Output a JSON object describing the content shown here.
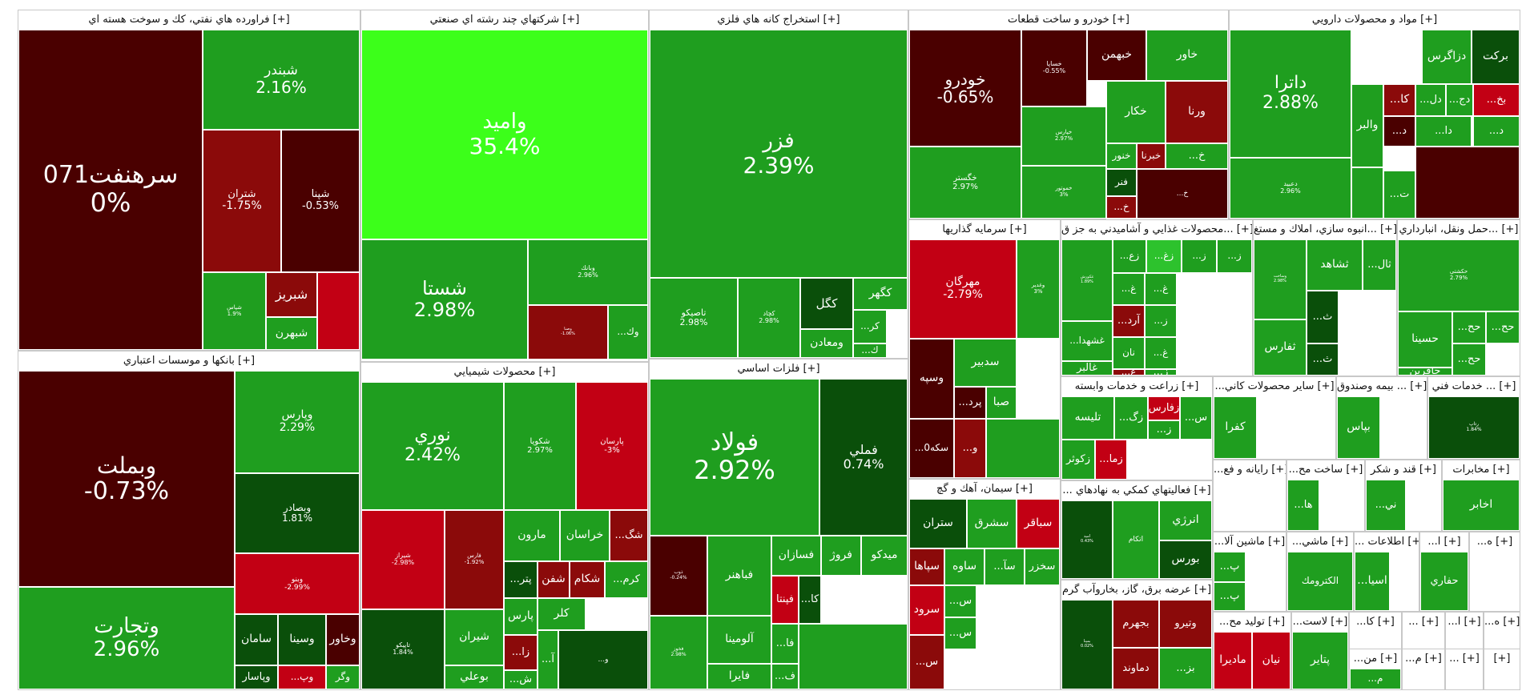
{
  "colors": {
    "dark_red": "#4a0000",
    "red": "#c20014",
    "mid_red": "#8b0a0a",
    "dark_green": "#0a4f0a",
    "green": "#1f9e1f",
    "light_green": "#2dc22d",
    "bright_green": "#3cff1a"
  },
  "sectors": [
    {
      "title": "فراورده هاي نفتي، كك و سوخت هسته اي [+]",
      "tiles": [
        {
          "symbol": "سرهنفت071",
          "change": "0%"
        },
        {
          "symbol": "شبندر",
          "change": "2.16%"
        },
        {
          "symbol": "شتران",
          "change": "-1.75%"
        },
        {
          "symbol": "شپنا",
          "change": "-0.53%"
        },
        {
          "symbol": "شپاس",
          "change": "1.9%"
        },
        {
          "symbol": "شبريز"
        },
        {
          "symbol": "شبهرن"
        }
      ]
    },
    {
      "title": "شركتهاي چند رشته اي صنعتي [+]",
      "tiles": [
        {
          "symbol": "واميد",
          "change": "35.4%"
        },
        {
          "symbol": "شستا",
          "change": "2.98%"
        },
        {
          "symbol": "وبانك",
          "change": "2.96%"
        },
        {
          "symbol": "وصنا",
          "change": "-1.06%"
        },
        {
          "symbol": "...وك"
        }
      ]
    },
    {
      "title": "استخراج كانه هاي فلزي [+]",
      "tiles": [
        {
          "symbol": "فزر",
          "change": "2.39%"
        },
        {
          "symbol": "تاصيكو",
          "change": "2.98%"
        },
        {
          "symbol": "كچاد",
          "change": "2.98%"
        },
        {
          "symbol": "كگل"
        },
        {
          "symbol": "كگهر"
        },
        {
          "symbol": "ومعادن"
        },
        {
          "symbol": "...كر"
        },
        {
          "symbol": "...ك"
        }
      ]
    },
    {
      "title": "خودرو و ساخت قطعات [+]",
      "tiles": [
        {
          "symbol": "خودرو",
          "change": "-0.65%"
        },
        {
          "symbol": "خساپا",
          "change": "-0.55%"
        },
        {
          "symbol": "خبهمن"
        },
        {
          "symbol": "خاور"
        },
        {
          "symbol": "خپارس",
          "change": "2.97%"
        },
        {
          "symbol": "خكار"
        },
        {
          "symbol": "ورنا"
        },
        {
          "symbol": "خگستر",
          "change": "2.97%"
        },
        {
          "symbol": "خموتور",
          "change": "3%"
        },
        {
          "symbol": "خنور"
        },
        {
          "symbol": "خبرنا"
        },
        {
          "symbol": "فنر"
        },
        {
          "symbol": "...خ"
        },
        {
          "symbol": "...خ"
        },
        {
          "symbol": "...خ"
        },
        {
          "symbol": "...خ"
        }
      ]
    },
    {
      "title": "مواد و محصولات دارويي [+]",
      "tiles": [
        {
          "symbol": "داترا",
          "change": "2.88%"
        },
        {
          "symbol": "دزاگرس"
        },
        {
          "symbol": "بركت"
        },
        {
          "symbol": "دعبيد",
          "change": "2.96%"
        },
        {
          "symbol": "والبر"
        },
        {
          "symbol": "...كا"
        },
        {
          "symbol": "...دل"
        },
        {
          "symbol": "...دج"
        },
        {
          "symbol": "...بخ"
        },
        {
          "symbol": "...د"
        },
        {
          "symbol": "...دا"
        },
        {
          "symbol": "...د"
        },
        {
          "symbol": "...ت"
        }
      ]
    },
    {
      "title": "بانكها و موسسات اعتباري [+]",
      "tiles": [
        {
          "symbol": "وبملت",
          "change": "-0.73%"
        },
        {
          "symbol": "وپارس",
          "change": "2.29%"
        },
        {
          "symbol": "وبصادر",
          "change": "1.81%"
        },
        {
          "symbol": "وتجارت",
          "change": "2.96%"
        },
        {
          "symbol": "وبنو",
          "change": "-2.99%"
        },
        {
          "symbol": "سامان"
        },
        {
          "symbol": "وسينا"
        },
        {
          "symbol": "وخاور"
        },
        {
          "symbol": "وپاسار"
        },
        {
          "symbol": "...وپ"
        },
        {
          "symbol": "وگر"
        }
      ]
    },
    {
      "title": "محصولات شيميايي [+]",
      "tiles": [
        {
          "symbol": "نوري",
          "change": "2.42%"
        },
        {
          "symbol": "شكويا",
          "change": "2.97%"
        },
        {
          "symbol": "پارسان",
          "change": "-3%"
        },
        {
          "symbol": "شيراز",
          "change": "-2.98%"
        },
        {
          "symbol": "فارس",
          "change": "-1.92%"
        },
        {
          "symbol": "تاپيكو",
          "change": "1.84%"
        },
        {
          "symbol": "مارون"
        },
        {
          "symbol": "خراسان"
        },
        {
          "symbol": "...شگ"
        },
        {
          "symbol": "شفن"
        },
        {
          "symbol": "شكام"
        },
        {
          "symbol": "...كرم"
        },
        {
          "symbol": "كلر"
        },
        {
          "symbol": "شيران"
        },
        {
          "symbol": "بوعلي"
        },
        {
          "symbol": "...پتر"
        },
        {
          "symbol": "پارس"
        },
        {
          "symbol": "...زا"
        },
        {
          "symbol": "...ش"
        },
        {
          "symbol": "...آ"
        },
        {
          "symbol": "...و"
        }
      ]
    },
    {
      "title": "فلزات اساسي [+]",
      "tiles": [
        {
          "symbol": "فولاد",
          "change": "2.92%"
        },
        {
          "symbol": "فملي",
          "change": "0.74%"
        },
        {
          "symbol": "ذوب",
          "change": "-0.24%"
        },
        {
          "symbol": "فخوز",
          "change": "2.98%"
        },
        {
          "symbol": "فباهنر"
        },
        {
          "symbol": "فسازان"
        },
        {
          "symbol": "فروژ"
        },
        {
          "symbol": "ميدكو"
        },
        {
          "symbol": "آلومينا"
        },
        {
          "symbol": "فايرا"
        },
        {
          "symbol": "فپنتا"
        },
        {
          "symbol": "...كا"
        },
        {
          "symbol": "...فا"
        },
        {
          "symbol": "...ف"
        }
      ]
    },
    {
      "title": "سرمايه گذاريها [+]",
      "tiles": [
        {
          "symbol": "مهرگان",
          "change": "-2.79%"
        },
        {
          "symbol": "وغدير",
          "change": "3%"
        },
        {
          "symbol": "وسپه"
        },
        {
          "symbol": "سدبير"
        },
        {
          "symbol": "...سكه0"
        },
        {
          "symbol": "...پرد"
        },
        {
          "symbol": "صبا"
        },
        {
          "symbol": "...و"
        }
      ]
    },
    {
      "title": "محصولات غذايي و آشاميدني به جز ق... [+]",
      "tiles": [
        {
          "symbol": "غكورش",
          "change": "1.89%"
        },
        {
          "symbol": "...زع"
        },
        {
          "symbol": "...زغ"
        },
        {
          "symbol": "...ز"
        },
        {
          "symbol": "...ز"
        },
        {
          "symbol": "...غ"
        },
        {
          "symbol": "...آرد"
        },
        {
          "symbol": "...غ"
        },
        {
          "symbol": "...ز"
        },
        {
          "symbol": "نان"
        },
        {
          "symbol": "...غشهدا"
        },
        {
          "symbol": "...غ"
        },
        {
          "symbol": "...غ"
        },
        {
          "symbol": "غالبر"
        },
        {
          "symbol": "غزر"
        },
        {
          "symbol": "...ز"
        }
      ]
    },
    {
      "title": "انبوه سازي، املاك و مستغ... [+]",
      "tiles": [
        {
          "symbol": "وساخت",
          "change": "2.98%"
        },
        {
          "symbol": "ثشاهد"
        },
        {
          "symbol": "...ثال"
        },
        {
          "symbol": "ثفارس"
        },
        {
          "symbol": "...ث"
        },
        {
          "symbol": "...ث"
        }
      ]
    },
    {
      "title": "حمل ونقل، انبارداري... [+]",
      "tiles": [
        {
          "symbol": "حكشتي",
          "change": "2.79%"
        },
        {
          "symbol": "حسينا"
        },
        {
          "symbol": "...حح"
        },
        {
          "symbol": "...حح"
        },
        {
          "symbol": "...حح"
        },
        {
          "symbol": "حآفرين"
        }
      ]
    },
    {
      "title": "سيمان، آهك و گچ [+]",
      "tiles": [
        {
          "symbol": "ستران"
        },
        {
          "symbol": "سشرق"
        },
        {
          "symbol": "سباقر"
        },
        {
          "symbol": "سپاها"
        },
        {
          "symbol": "ساوه"
        },
        {
          "symbol": "...سآ"
        },
        {
          "symbol": "سخزر"
        },
        {
          "symbol": "سرود"
        },
        {
          "symbol": "...س"
        },
        {
          "symbol": "...س"
        },
        {
          "symbol": "...س"
        }
      ]
    },
    {
      "title": "زراعت و خدمات وابسته [+]",
      "tiles": [
        {
          "symbol": "تليسه"
        },
        {
          "symbol": "...زگ"
        },
        {
          "symbol": "زفارس"
        },
        {
          "symbol": "...س"
        },
        {
          "symbol": "...ز"
        },
        {
          "symbol": "زكوثر"
        },
        {
          "symbol": "...زما"
        }
      ]
    },
    {
      "title": "... فعاليتهاي كمكي به نهادهاي [+]",
      "tiles": [
        {
          "symbol": "اميد",
          "change": "0.43%"
        },
        {
          "symbol": "اتكام"
        },
        {
          "symbol": "انرژي"
        },
        {
          "symbol": "بورس"
        }
      ]
    },
    {
      "title": "عرضه برق، گاز، بخاروآب گرم [+]",
      "tiles": [
        {
          "symbol": "بمپنا",
          "change": "0.02%"
        },
        {
          "symbol": "بجهرم"
        },
        {
          "symbol": "وتيرو"
        },
        {
          "symbol": "دماوند"
        },
        {
          "symbol": "...بز"
        }
      ]
    },
    {
      "title": "...ساير محصولات كاني [+]",
      "tiles": [
        {
          "symbol": "كفرا"
        }
      ]
    },
    {
      "title": "بيمه وصندوق ... [+]",
      "tiles": [
        {
          "symbol": "بپاس"
        }
      ]
    },
    {
      "title": "خدمات فني ... [+]",
      "tiles": [
        {
          "symbol": "رتاپ",
          "change": "1.84%"
        }
      ]
    },
    {
      "title": "...رايانه و فع [+]",
      "tiles": []
    },
    {
      "title": "...ساخت مح [+]",
      "tiles": [
        {
          "symbol": "...ها"
        }
      ]
    },
    {
      "title": "قند و شكر [+]",
      "tiles": [
        {
          "symbol": "...ني"
        }
      ]
    },
    {
      "title": "مخابرات [+]",
      "tiles": [
        {
          "symbol": "اخابر"
        }
      ]
    },
    {
      "title": "...ماشين آلا [+]",
      "tiles": [
        {
          "symbol": "...پ"
        },
        {
          "symbol": "...پ"
        }
      ]
    },
    {
      "title": "...ماشي [+]",
      "tiles": [
        {
          "symbol": "الكترومك"
        }
      ]
    },
    {
      "title": "... اطلاعات [+]",
      "tiles": [
        {
          "symbol": "...اسيا"
        }
      ]
    },
    {
      "title": "...ا [+]",
      "tiles": [
        {
          "symbol": "حفاري"
        }
      ]
    },
    {
      "title": "...ه [+]",
      "tiles": []
    },
    {
      "title": "...توليد مح [+]",
      "tiles": [
        {
          "symbol": "ماديرا"
        },
        {
          "symbol": "نيان"
        }
      ]
    },
    {
      "title": "...لاست [+]",
      "tiles": [
        {
          "symbol": "پتاير"
        }
      ]
    },
    {
      "title": "...كا [+]",
      "tiles": []
    },
    {
      "title": "... [+]",
      "tiles": []
    },
    {
      "title": "...ا [+]",
      "tiles": []
    },
    {
      "title": "...ه [+]",
      "tiles": []
    },
    {
      "title": "...من [+]",
      "tiles": [
        {
          "symbol": "...م"
        }
      ]
    },
    {
      "title": "...م [+]",
      "tiles": []
    },
    {
      "title": "... [+]",
      "tiles": []
    },
    {
      "title": "[+]",
      "tiles": []
    }
  ]
}
